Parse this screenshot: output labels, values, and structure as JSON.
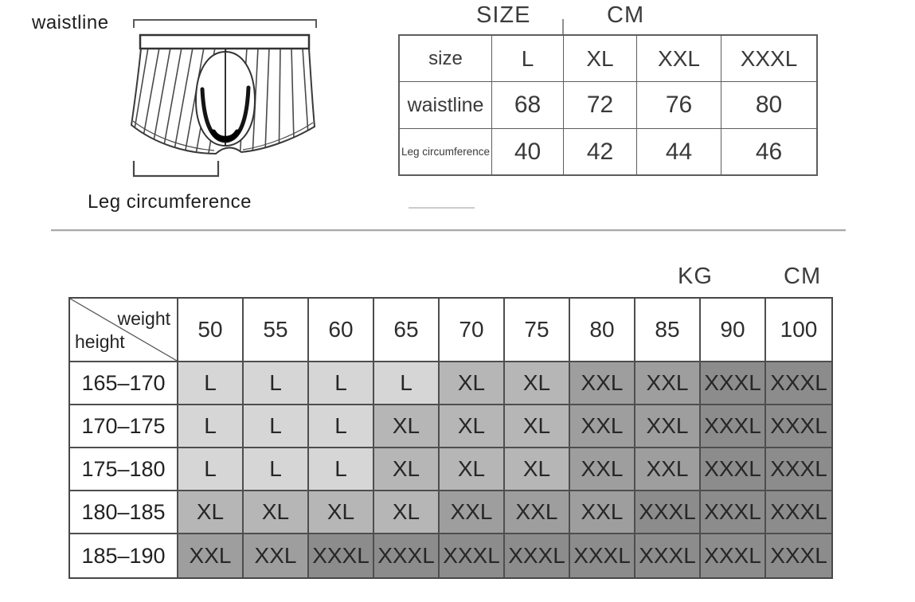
{
  "diagram": {
    "waistline_label": "waistline",
    "leg_label": "Leg circumference"
  },
  "size_table": {
    "title_left": "SIZE",
    "title_right": "CM",
    "rows": [
      {
        "label": "size",
        "values": [
          "L",
          "XL",
          "XXL",
          "XXXL"
        ]
      },
      {
        "label": "waistline",
        "values": [
          "68",
          "72",
          "76",
          "80"
        ]
      },
      {
        "label": "Leg circumference",
        "values": [
          "40",
          "42",
          "44",
          "46"
        ]
      }
    ]
  },
  "matrix": {
    "unit_weight": "KG",
    "unit_height": "CM",
    "corner": {
      "top": "weight",
      "bottom": "height"
    },
    "weights": [
      "50",
      "55",
      "60",
      "65",
      "70",
      "75",
      "80",
      "85",
      "90",
      "100"
    ],
    "rows": [
      {
        "height": "165–170",
        "sizes": [
          "L",
          "L",
          "L",
          "L",
          "XL",
          "XL",
          "XXL",
          "XXL",
          "XXXL",
          "XXXL"
        ]
      },
      {
        "height": "170–175",
        "sizes": [
          "L",
          "L",
          "L",
          "XL",
          "XL",
          "XL",
          "XXL",
          "XXL",
          "XXXL",
          "XXXL"
        ]
      },
      {
        "height": "175–180",
        "sizes": [
          "L",
          "L",
          "L",
          "XL",
          "XL",
          "XL",
          "XXL",
          "XXL",
          "XXXL",
          "XXXL"
        ]
      },
      {
        "height": "180–185",
        "sizes": [
          "XL",
          "XL",
          "XL",
          "XL",
          "XXL",
          "XXL",
          "XXL",
          "XXXL",
          "XXXL",
          "XXXL"
        ]
      },
      {
        "height": "185–190",
        "sizes": [
          "XXL",
          "XXL",
          "XXXL",
          "XXXL",
          "XXXL",
          "XXXL",
          "XXXL",
          "XXXL",
          "XXXL",
          "XXXL"
        ]
      }
    ],
    "shades": {
      "L": "#d6d6d6",
      "XL": "#b6b6b6",
      "XXL": "#9e9e9e",
      "XXXL": "#8c8c8c"
    }
  }
}
